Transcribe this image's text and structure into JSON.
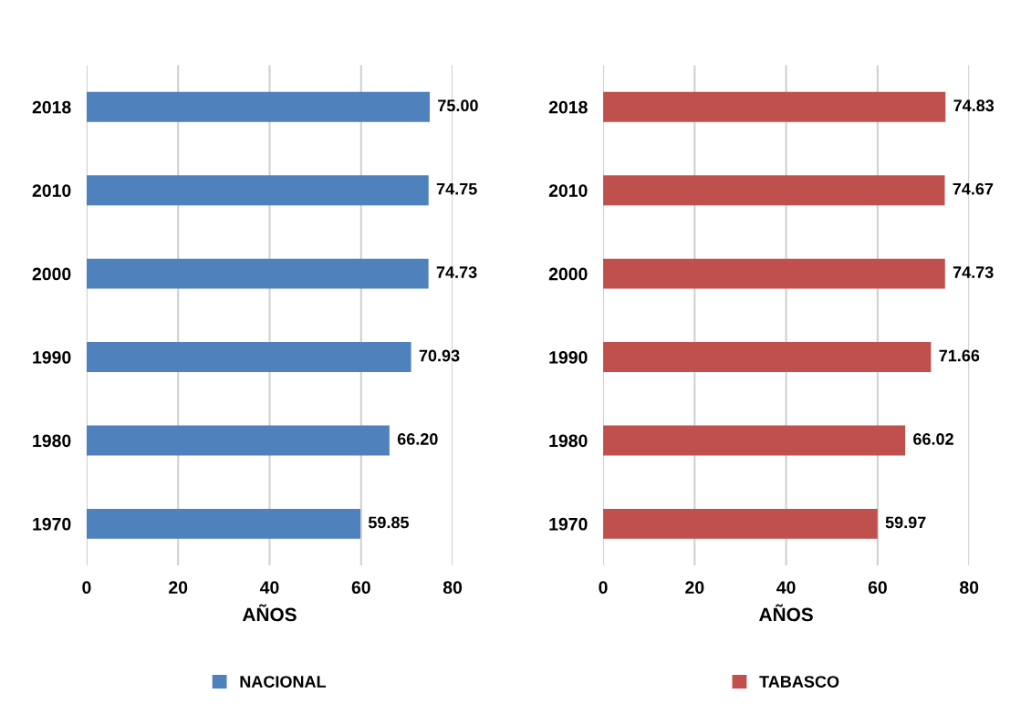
{
  "chart_data": [
    {
      "type": "bar",
      "orientation": "horizontal",
      "categories": [
        "2018",
        "2010",
        "2000",
        "1990",
        "1980",
        "1970"
      ],
      "xlabel": "AÑOS",
      "xlim": [
        0,
        80
      ],
      "xticks": [
        0,
        20,
        40,
        60,
        80
      ],
      "grid": "x",
      "legend": "bottom",
      "data_labels": true,
      "series": [
        {
          "name": "NACIONAL",
          "color": "#4f81bd",
          "values": [
            75.0,
            74.75,
            74.73,
            70.93,
            66.2,
            59.85
          ],
          "value_labels": [
            "75.00",
            "74.75",
            "74.73",
            "70.93",
            "66.20",
            "59.85"
          ]
        }
      ]
    },
    {
      "type": "bar",
      "orientation": "horizontal",
      "categories": [
        "2018",
        "2010",
        "2000",
        "1990",
        "1980",
        "1970"
      ],
      "xlabel": "AÑOS",
      "xlim": [
        0,
        80
      ],
      "xticks": [
        0,
        20,
        40,
        60,
        80
      ],
      "grid": "x",
      "legend": "bottom",
      "data_labels": true,
      "series": [
        {
          "name": "TABASCO",
          "color": "#c0504d",
          "values": [
            74.83,
            74.67,
            74.73,
            71.66,
            66.02,
            59.97
          ],
          "value_labels": [
            "74.83",
            "74.67",
            "74.73",
            "71.66",
            "66.02",
            "59.97"
          ]
        }
      ]
    }
  ]
}
